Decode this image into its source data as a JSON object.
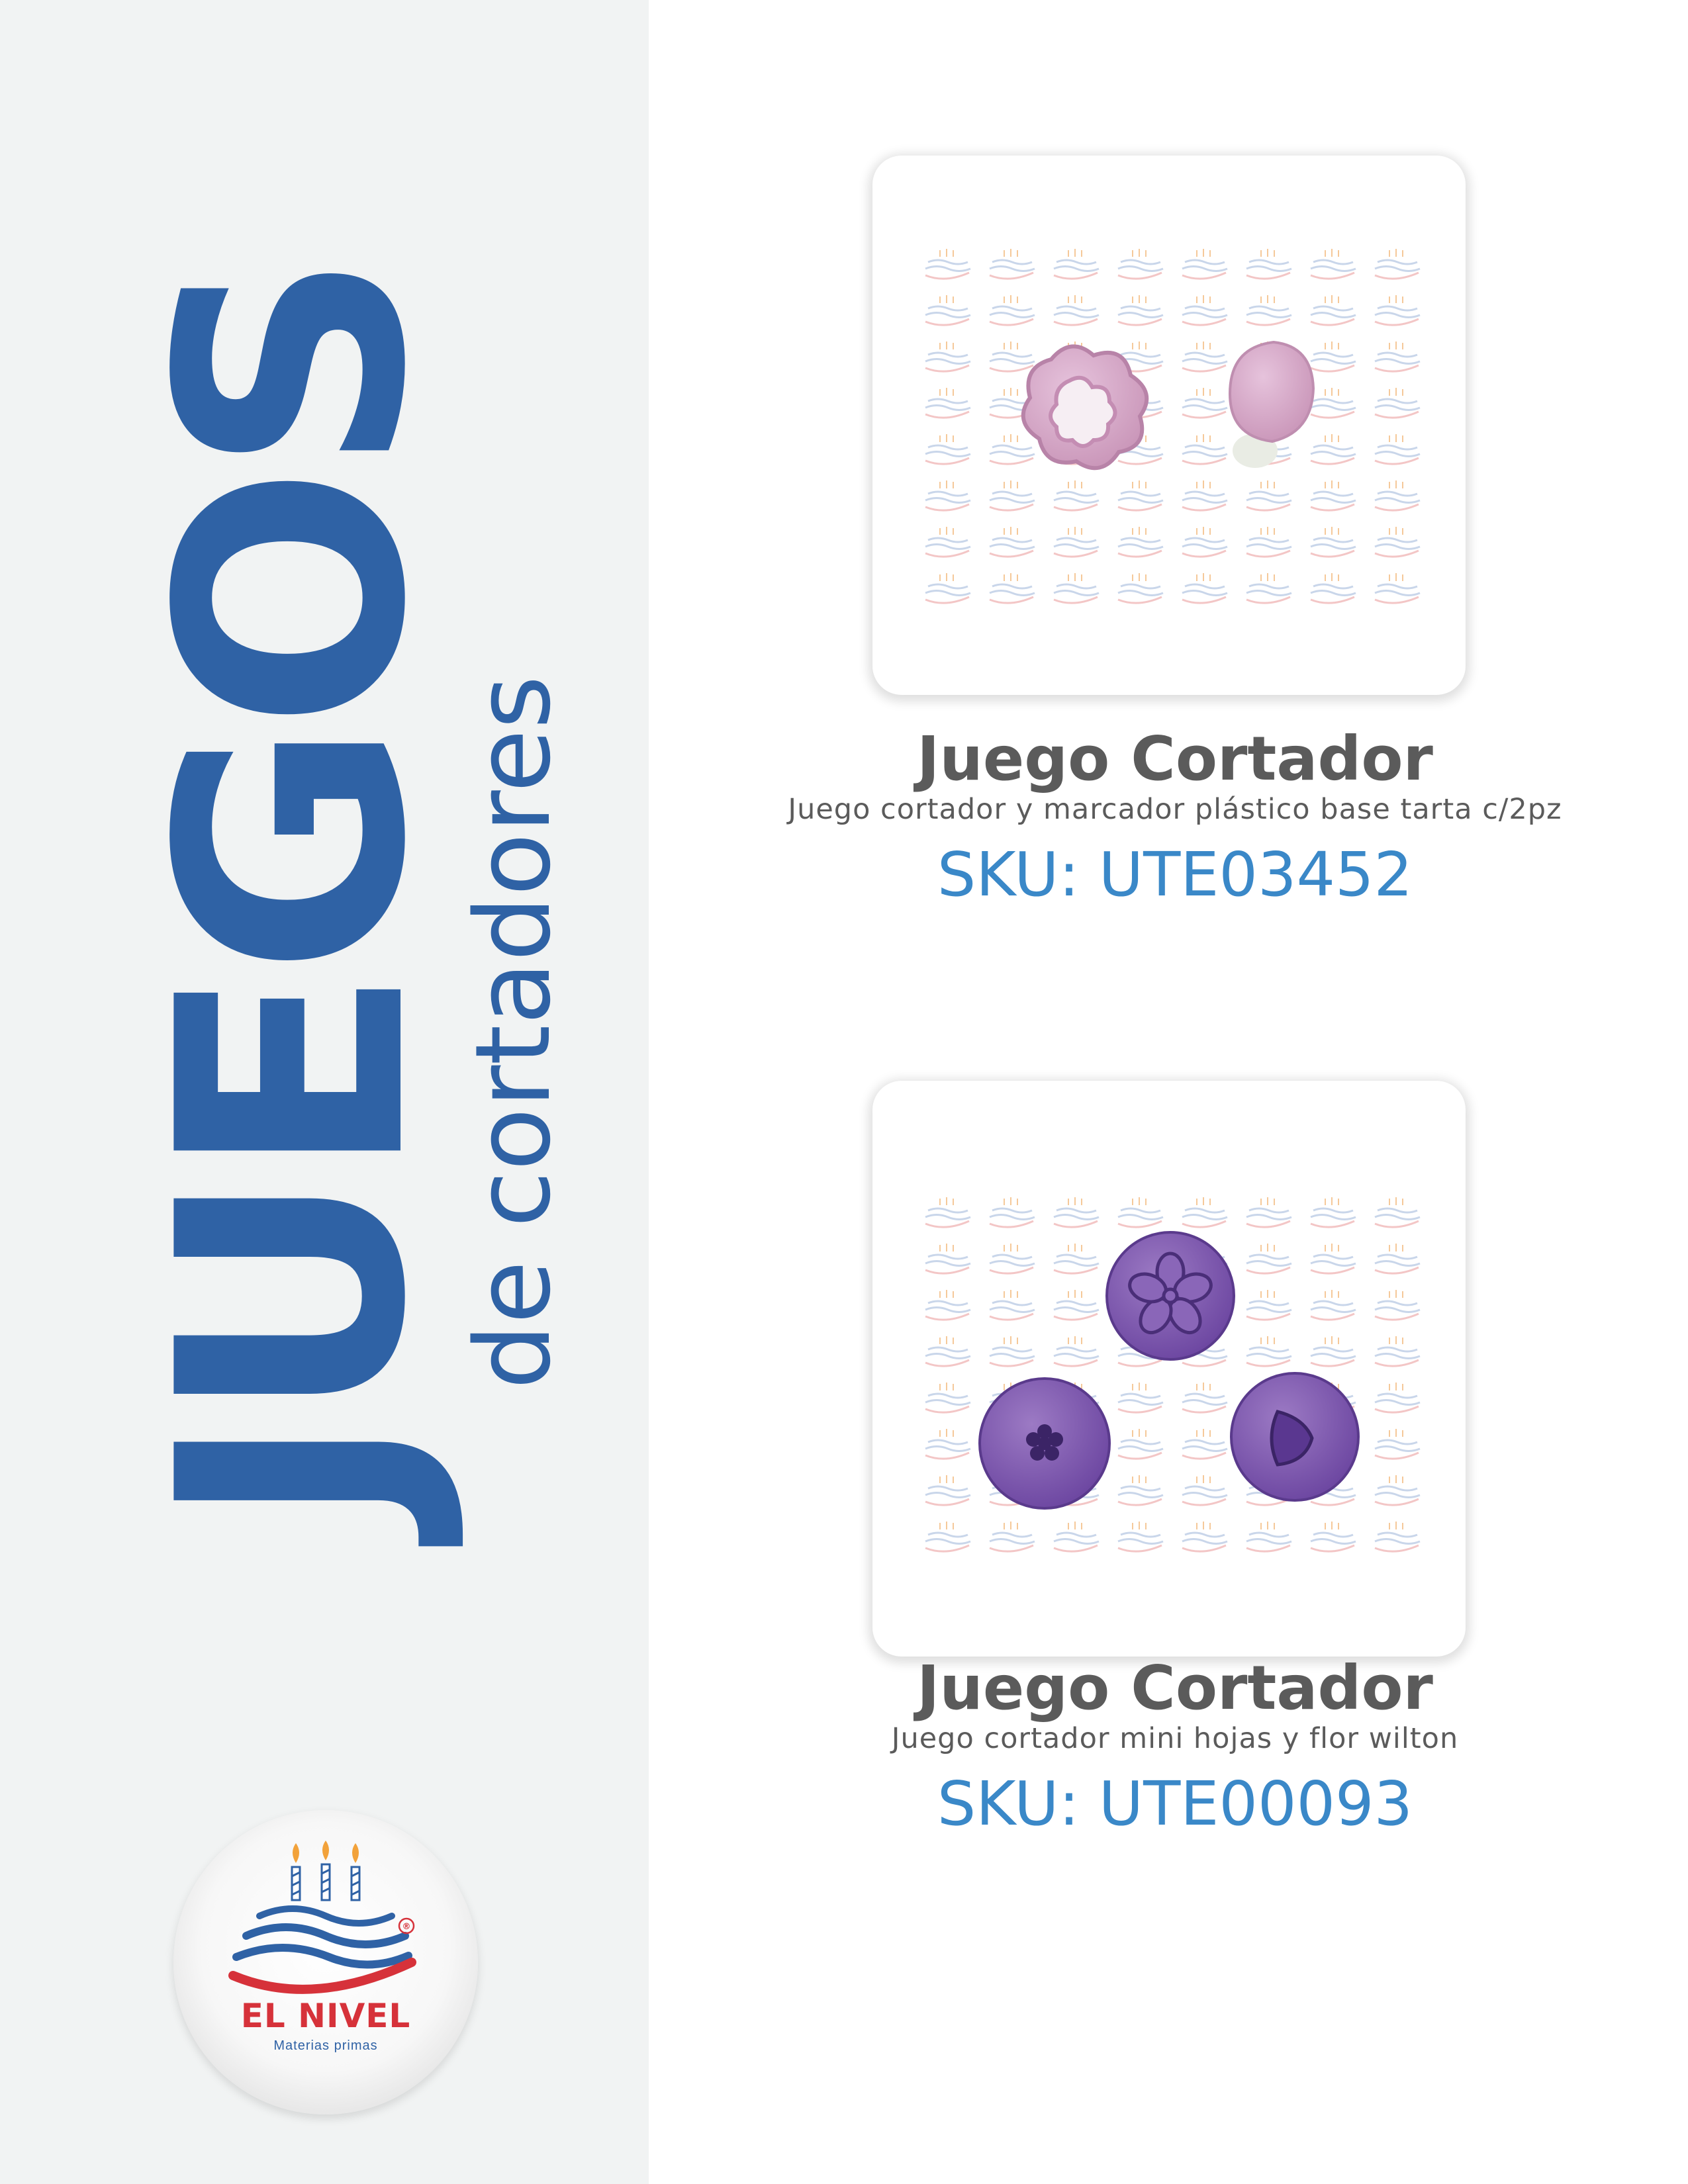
{
  "sidebar": {
    "title": "JUEGOS",
    "subtitle": "de cortadores",
    "logo": {
      "icon": "birthday-cake-logo",
      "name": "EL NIVEL",
      "tagline": "Materias primas",
      "registered_mark": "®"
    }
  },
  "products": [
    {
      "image": "pink-flower-cutter-and-marker",
      "title": "Juego Cortador",
      "description": "Juego cortador y marcador plástico base tarta c/2pz",
      "sku": "SKU: UTE03452"
    },
    {
      "image": "purple-mini-leaf-flower-plunger-cutters",
      "title": "Juego Cortador",
      "description": "Juego cortador mini hojas y flor wilton",
      "sku": "SKU: UTE00093"
    }
  ],
  "colors": {
    "brand_blue": "#2f62a5",
    "sku_blue": "#3a88c8",
    "text_gray": "#5b5b5b",
    "sidebar_bg": "#f1f3f3",
    "logo_red": "#d6323a"
  }
}
